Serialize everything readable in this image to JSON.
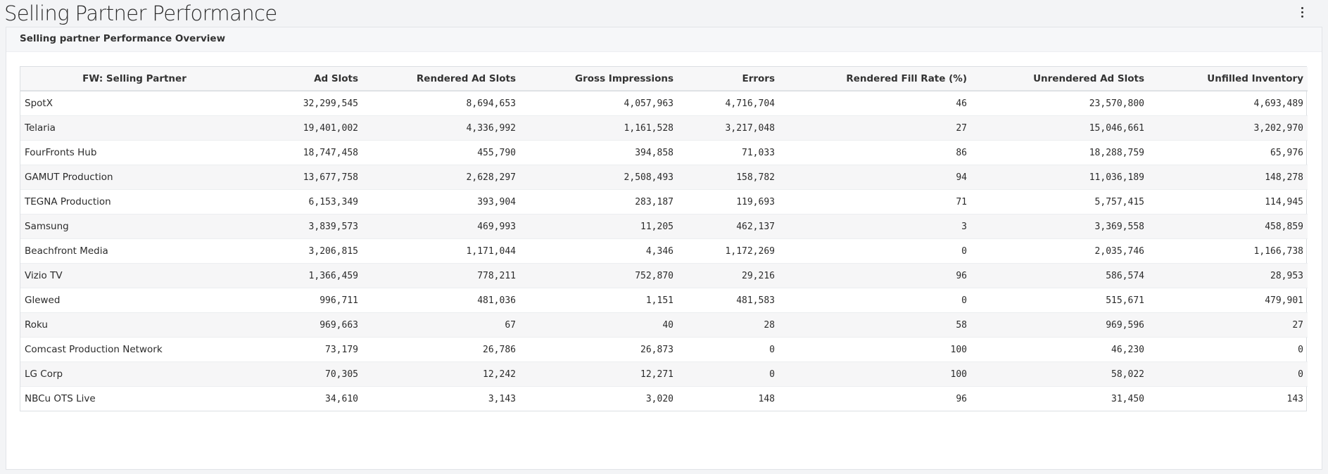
{
  "page": {
    "title": "Selling Partner Performance"
  },
  "panel": {
    "title": "Selling partner Performance Overview"
  },
  "icons": {
    "page_menu": "vertical-ellipsis-icon",
    "panel_menu": "vertical-ellipsis-icon"
  },
  "table": {
    "columns": [
      "FW: Selling Partner",
      "Ad Slots",
      "Rendered Ad Slots",
      "Gross Impressions",
      "Errors",
      "Rendered Fill Rate (%)",
      "Unrendered Ad Slots",
      "Unfilled Inventory"
    ],
    "rows": [
      [
        "SpotX",
        "32,299,545",
        "8,694,653",
        "4,057,963",
        "4,716,704",
        "46",
        "23,570,800",
        "4,693,489"
      ],
      [
        "Telaria",
        "19,401,002",
        "4,336,992",
        "1,161,528",
        "3,217,048",
        "27",
        "15,046,661",
        "3,202,970"
      ],
      [
        "FourFronts Hub",
        "18,747,458",
        "455,790",
        "394,858",
        "71,033",
        "86",
        "18,288,759",
        "65,976"
      ],
      [
        "GAMUT Production",
        "13,677,758",
        "2,628,297",
        "2,508,493",
        "158,782",
        "94",
        "11,036,189",
        "148,278"
      ],
      [
        "TEGNA Production",
        "6,153,349",
        "393,904",
        "283,187",
        "119,693",
        "71",
        "5,757,415",
        "114,945"
      ],
      [
        "Samsung",
        "3,839,573",
        "469,993",
        "11,205",
        "462,137",
        "3",
        "3,369,558",
        "458,859"
      ],
      [
        "Beachfront Media",
        "3,206,815",
        "1,171,044",
        "4,346",
        "1,172,269",
        "0",
        "2,035,746",
        "1,166,738"
      ],
      [
        "Vizio TV",
        "1,366,459",
        "778,211",
        "752,870",
        "29,216",
        "96",
        "586,574",
        "28,953"
      ],
      [
        "Glewed",
        "996,711",
        "481,036",
        "1,151",
        "481,583",
        "0",
        "515,671",
        "479,901"
      ],
      [
        "Roku",
        "969,663",
        "67",
        "40",
        "28",
        "58",
        "969,596",
        "27"
      ],
      [
        "Comcast Production Network",
        "73,179",
        "26,786",
        "26,873",
        "0",
        "100",
        "46,230",
        "0"
      ],
      [
        "LG Corp",
        "70,305",
        "12,242",
        "12,271",
        "0",
        "100",
        "58,022",
        "0"
      ],
      [
        "NBCu OTS Live",
        "34,610",
        "3,143",
        "3,020",
        "148",
        "96",
        "31,450",
        "143"
      ]
    ]
  }
}
